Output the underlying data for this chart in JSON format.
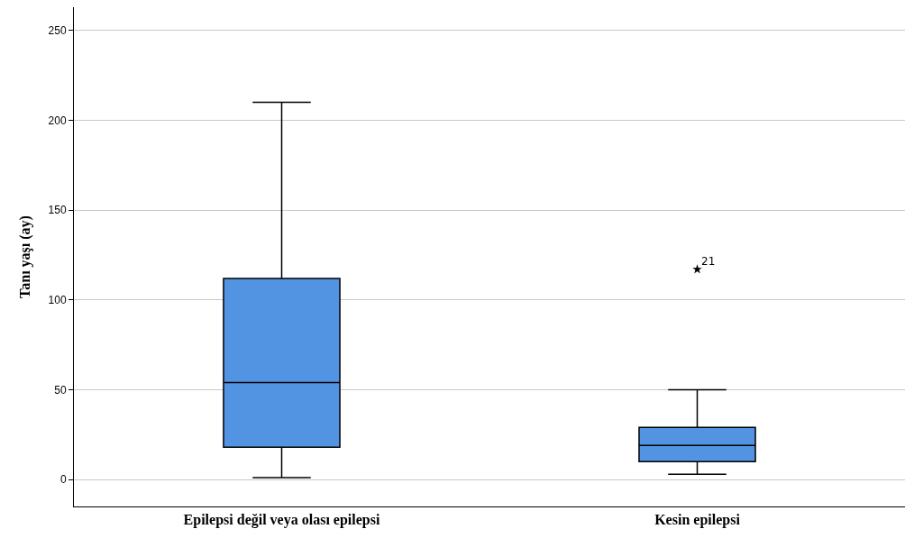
{
  "chart_data": {
    "type": "box",
    "ylabel": "Tanı yaşı (ay)",
    "categories": [
      "Epilepsi değil veya olası epilepsi",
      "Kesin epilepsi"
    ],
    "boxes": [
      {
        "low": 1,
        "q1": 18,
        "median": 54,
        "q3": 112,
        "high": 210
      },
      {
        "low": 3,
        "q1": 10,
        "median": 19,
        "q3": 29,
        "high": 50,
        "outliers": [
          117
        ]
      }
    ],
    "color": "#5294e2",
    "marker": "star",
    "ylim": [
      -15,
      263
    ],
    "yticks": [
      0,
      50,
      100,
      150,
      200,
      250
    ],
    "grid": "y",
    "annotations": [
      "21"
    ]
  }
}
